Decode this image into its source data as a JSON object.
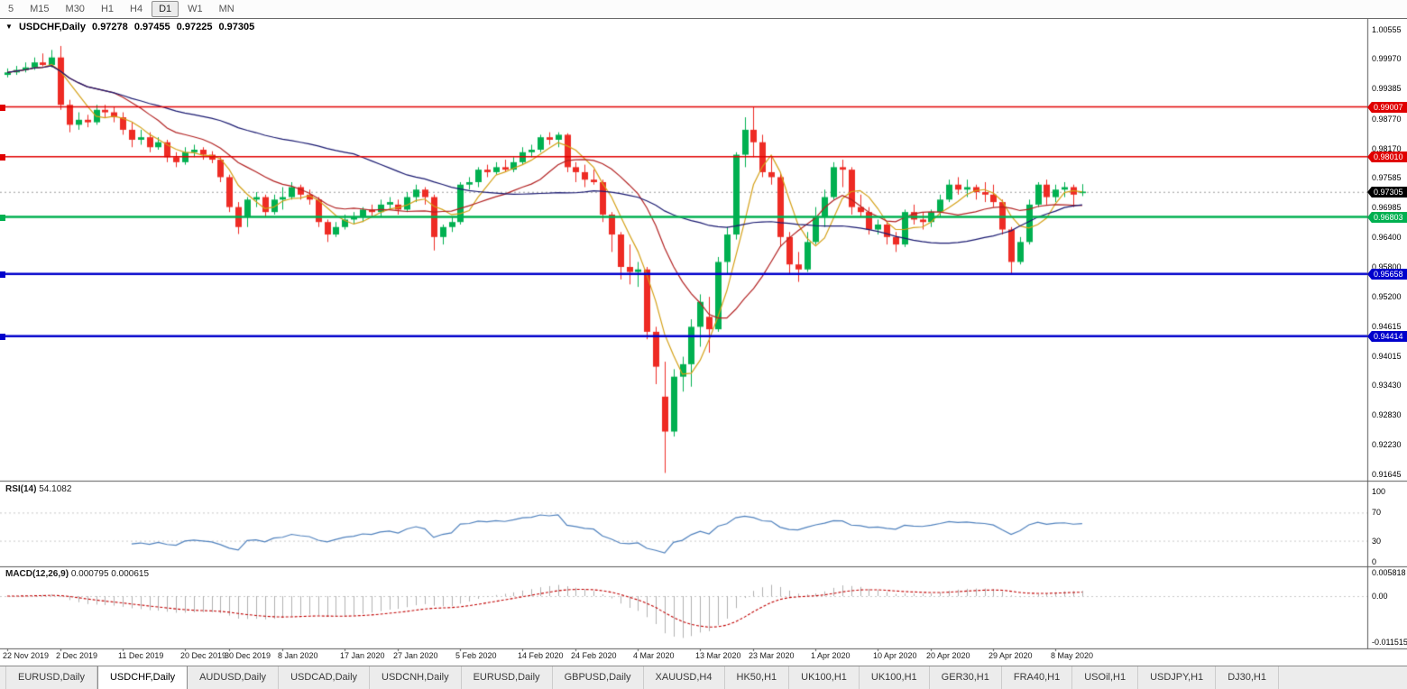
{
  "toolbar": {
    "timeframes": [
      {
        "label": "5",
        "active": false
      },
      {
        "label": "M15",
        "active": false
      },
      {
        "label": "M30",
        "active": false
      },
      {
        "label": "H1",
        "active": false
      },
      {
        "label": "H4",
        "active": false
      },
      {
        "label": "D1",
        "active": true
      },
      {
        "label": "W1",
        "active": false
      },
      {
        "label": "MN",
        "active": false
      }
    ]
  },
  "header": {
    "collapse_icon": "▼",
    "symbol": "USDCHF,Daily",
    "open": "0.97278",
    "high": "0.97455",
    "low": "0.97225",
    "close": "0.97305"
  },
  "chart_data": {
    "type": "candlestick",
    "symbol": "USDCHF",
    "timeframe": "Daily",
    "colors": {
      "up": "#00b050",
      "down": "#ee2b24",
      "wick_up": "#00b050",
      "wick_down": "#ee2b24",
      "ma_fast": "#d4a017",
      "ma_mid": "#b22222",
      "ma_slow": "#191970",
      "level_red": "#e00000",
      "level_green": "#00b050",
      "level_blue": "#0000cc",
      "current": "#000000",
      "rsi_line": "#4f81bd",
      "macd_hist": "#b0b0b0",
      "macd_signal": "#c00000"
    },
    "y_axis": {
      "price_labels": [
        "1.00555",
        "0.99970",
        "0.99385",
        "0.98770",
        "0.98170",
        "0.97585",
        "0.96985",
        "0.96400",
        "0.95800",
        "0.95200",
        "0.94615",
        "0.94015",
        "0.93430",
        "0.92830",
        "0.92230",
        "0.91645"
      ]
    },
    "x_axis": {
      "date_labels": [
        {
          "text": "22 Nov 2019",
          "candle_index": 0
        },
        {
          "text": "2 Dec 2019",
          "candle_index": 6
        },
        {
          "text": "11 Dec 2019",
          "candle_index": 13
        },
        {
          "text": "20 Dec 2019",
          "candle_index": 20
        },
        {
          "text": "30 Dec 2019",
          "candle_index": 25
        },
        {
          "text": "8 Jan 2020",
          "candle_index": 31
        },
        {
          "text": "17 Jan 2020",
          "candle_index": 38
        },
        {
          "text": "27 Jan 2020",
          "candle_index": 44
        },
        {
          "text": "5 Feb 2020",
          "candle_index": 51
        },
        {
          "text": "14 Feb 2020",
          "candle_index": 58
        },
        {
          "text": "24 Feb 2020",
          "candle_index": 64
        },
        {
          "text": "4 Mar 2020",
          "candle_index": 71
        },
        {
          "text": "13 Mar 2020",
          "candle_index": 78
        },
        {
          "text": "23 Mar 2020",
          "candle_index": 84
        },
        {
          "text": "1 Apr 2020",
          "candle_index": 91
        },
        {
          "text": "10 Apr 2020",
          "candle_index": 98
        },
        {
          "text": "20 Apr 2020",
          "candle_index": 104
        },
        {
          "text": "29 Apr 2020",
          "candle_index": 111
        },
        {
          "text": "8 May 2020",
          "candle_index": 118
        }
      ]
    },
    "horizontal_levels": [
      {
        "price": 0.99007,
        "label": "0.99007",
        "color": "#e00000",
        "width": 1.5
      },
      {
        "price": 0.9801,
        "label": "0.98010",
        "color": "#e00000",
        "width": 1.5
      },
      {
        "price": 0.96803,
        "label": "0.96803",
        "color": "#00b050",
        "width": 2.5
      },
      {
        "price": 0.95658,
        "label": "0.95658",
        "color": "#0000cc",
        "width": 2.5
      },
      {
        "price": 0.94414,
        "label": "0.94414",
        "color": "#0000cc",
        "width": 2.5
      }
    ],
    "current_price_line": {
      "price": 0.97305,
      "label": "0.97305",
      "color": "#000000"
    },
    "moving_averages": [
      {
        "period": 5,
        "color": "#d4a017"
      },
      {
        "period": 13,
        "color": "#b22222"
      },
      {
        "period": 40,
        "color": "#191970"
      }
    ],
    "candles": [
      [
        0.9965,
        0.9978,
        0.996,
        0.997
      ],
      [
        0.997,
        0.9983,
        0.9965,
        0.9975
      ],
      [
        0.9975,
        0.999,
        0.997,
        0.998
      ],
      [
        0.998,
        1.0,
        0.9975,
        0.999
      ],
      [
        0.999,
        1.0008,
        0.9982,
        0.9985
      ],
      [
        0.9985,
        1.0015,
        0.998,
        1.0
      ],
      [
        1.0,
        1.0023,
        0.9895,
        0.9905
      ],
      [
        0.9905,
        0.9915,
        0.985,
        0.9865
      ],
      [
        0.9865,
        0.989,
        0.9855,
        0.9875
      ],
      [
        0.9875,
        0.9885,
        0.986,
        0.987
      ],
      [
        0.987,
        0.9905,
        0.9865,
        0.9895
      ],
      [
        0.9895,
        0.9905,
        0.988,
        0.989
      ],
      [
        0.989,
        0.99,
        0.987,
        0.988
      ],
      [
        0.988,
        0.989,
        0.9845,
        0.9855
      ],
      [
        0.9855,
        0.987,
        0.982,
        0.9835
      ],
      [
        0.9835,
        0.9855,
        0.9825,
        0.984
      ],
      [
        0.984,
        0.985,
        0.981,
        0.982
      ],
      [
        0.982,
        0.984,
        0.9815,
        0.983
      ],
      [
        0.983,
        0.9835,
        0.979,
        0.98
      ],
      [
        0.98,
        0.981,
        0.978,
        0.979
      ],
      [
        0.979,
        0.982,
        0.9785,
        0.981
      ],
      [
        0.981,
        0.9825,
        0.98,
        0.9815
      ],
      [
        0.9815,
        0.982,
        0.9795,
        0.9805
      ],
      [
        0.9805,
        0.9812,
        0.9788,
        0.9795
      ],
      [
        0.9795,
        0.98,
        0.975,
        0.976
      ],
      [
        0.976,
        0.9765,
        0.969,
        0.97
      ],
      [
        0.97,
        0.971,
        0.9646,
        0.966
      ],
      [
        0.968,
        0.972,
        0.966,
        0.9715
      ],
      [
        0.9715,
        0.973,
        0.97,
        0.972
      ],
      [
        0.972,
        0.9725,
        0.968,
        0.969
      ],
      [
        0.969,
        0.9725,
        0.9685,
        0.9715
      ],
      [
        0.9715,
        0.974,
        0.9695,
        0.972
      ],
      [
        0.972,
        0.975,
        0.9715,
        0.974
      ],
      [
        0.974,
        0.9745,
        0.9715,
        0.9725
      ],
      [
        0.9725,
        0.9735,
        0.9705,
        0.9715
      ],
      [
        0.9715,
        0.972,
        0.966,
        0.967
      ],
      [
        0.967,
        0.9675,
        0.963,
        0.9645
      ],
      [
        0.9645,
        0.967,
        0.964,
        0.966
      ],
      [
        0.966,
        0.9685,
        0.9655,
        0.9675
      ],
      [
        0.9675,
        0.969,
        0.9665,
        0.968
      ],
      [
        0.968,
        0.97,
        0.967,
        0.9695
      ],
      [
        0.9695,
        0.9705,
        0.968,
        0.969
      ],
      [
        0.969,
        0.9715,
        0.968,
        0.9705
      ],
      [
        0.9705,
        0.972,
        0.9695,
        0.971
      ],
      [
        0.9705,
        0.9715,
        0.9685,
        0.9695
      ],
      [
        0.9695,
        0.973,
        0.969,
        0.972
      ],
      [
        0.972,
        0.9745,
        0.971,
        0.9735
      ],
      [
        0.9735,
        0.974,
        0.9705,
        0.972
      ],
      [
        0.972,
        0.9725,
        0.9613,
        0.964
      ],
      [
        0.964,
        0.9665,
        0.9625,
        0.966
      ],
      [
        0.966,
        0.968,
        0.965,
        0.967
      ],
      [
        0.967,
        0.975,
        0.9665,
        0.9745
      ],
      [
        0.9745,
        0.976,
        0.9735,
        0.975
      ],
      [
        0.975,
        0.978,
        0.974,
        0.9775
      ],
      [
        0.9775,
        0.9785,
        0.976,
        0.977
      ],
      [
        0.977,
        0.979,
        0.9765,
        0.978
      ],
      [
        0.978,
        0.9795,
        0.977,
        0.9775
      ],
      [
        0.9775,
        0.98,
        0.977,
        0.979
      ],
      [
        0.979,
        0.982,
        0.9785,
        0.981
      ],
      [
        0.981,
        0.9825,
        0.98,
        0.9815
      ],
      [
        0.9815,
        0.9845,
        0.981,
        0.984
      ],
      [
        0.984,
        0.985,
        0.9825,
        0.9835
      ],
      [
        0.9835,
        0.985,
        0.982,
        0.9845
      ],
      [
        0.9845,
        0.9848,
        0.977,
        0.978
      ],
      [
        0.978,
        0.979,
        0.975,
        0.977
      ],
      [
        0.977,
        0.9785,
        0.974,
        0.9755
      ],
      [
        0.9755,
        0.9775,
        0.9745,
        0.975
      ],
      [
        0.975,
        0.9755,
        0.967,
        0.9685
      ],
      [
        0.9685,
        0.969,
        0.961,
        0.9645
      ],
      [
        0.9645,
        0.965,
        0.9555,
        0.958
      ],
      [
        0.958,
        0.9625,
        0.9545,
        0.957
      ],
      [
        0.957,
        0.959,
        0.954,
        0.9575
      ],
      [
        0.9575,
        0.958,
        0.9435,
        0.945
      ],
      [
        0.945,
        0.946,
        0.9345,
        0.938
      ],
      [
        0.932,
        0.939,
        0.9167,
        0.925
      ],
      [
        0.925,
        0.9375,
        0.924,
        0.936
      ],
      [
        0.936,
        0.94,
        0.933,
        0.9385
      ],
      [
        0.9385,
        0.9475,
        0.934,
        0.946
      ],
      [
        0.946,
        0.9525,
        0.942,
        0.951
      ],
      [
        0.948,
        0.952,
        0.9408,
        0.9455
      ],
      [
        0.9455,
        0.96,
        0.945,
        0.959
      ],
      [
        0.959,
        0.966,
        0.9565,
        0.9645
      ],
      [
        0.9645,
        0.981,
        0.9635,
        0.9805
      ],
      [
        0.9805,
        0.988,
        0.978,
        0.9855
      ],
      [
        0.9855,
        0.9901,
        0.98,
        0.983
      ],
      [
        0.983,
        0.9845,
        0.976,
        0.977
      ],
      [
        0.977,
        0.98,
        0.9745,
        0.976
      ],
      [
        0.976,
        0.977,
        0.962,
        0.964
      ],
      [
        0.964,
        0.965,
        0.9565,
        0.9585
      ],
      [
        0.9585,
        0.961,
        0.955,
        0.9575
      ],
      [
        0.9575,
        0.965,
        0.957,
        0.963
      ],
      [
        0.963,
        0.97,
        0.9625,
        0.968
      ],
      [
        0.968,
        0.9735,
        0.966,
        0.972
      ],
      [
        0.972,
        0.979,
        0.9715,
        0.978
      ],
      [
        0.978,
        0.9795,
        0.974,
        0.9775
      ],
      [
        0.9775,
        0.978,
        0.9685,
        0.97
      ],
      [
        0.97,
        0.9725,
        0.968,
        0.969
      ],
      [
        0.969,
        0.97,
        0.9645,
        0.9655
      ],
      [
        0.9655,
        0.9675,
        0.9645,
        0.9665
      ],
      [
        0.9665,
        0.967,
        0.9625,
        0.964
      ],
      [
        0.964,
        0.965,
        0.961,
        0.9625
      ],
      [
        0.9625,
        0.9695,
        0.962,
        0.969
      ],
      [
        0.969,
        0.9705,
        0.9665,
        0.9675
      ],
      [
        0.9675,
        0.969,
        0.9655,
        0.967
      ],
      [
        0.967,
        0.9695,
        0.966,
        0.969
      ],
      [
        0.969,
        0.9725,
        0.968,
        0.9715
      ],
      [
        0.9715,
        0.9755,
        0.971,
        0.9745
      ],
      [
        0.9745,
        0.976,
        0.9725,
        0.9735
      ],
      [
        0.9735,
        0.9755,
        0.972,
        0.974
      ],
      [
        0.974,
        0.9745,
        0.9715,
        0.973
      ],
      [
        0.973,
        0.975,
        0.971,
        0.9725
      ],
      [
        0.9725,
        0.9745,
        0.97,
        0.971
      ],
      [
        0.971,
        0.9715,
        0.9645,
        0.9655
      ],
      [
        0.9655,
        0.966,
        0.9565,
        0.959
      ],
      [
        0.959,
        0.964,
        0.9585,
        0.963
      ],
      [
        0.963,
        0.9715,
        0.9625,
        0.9705
      ],
      [
        0.9705,
        0.975,
        0.97,
        0.9745
      ],
      [
        0.9745,
        0.9755,
        0.9705,
        0.972
      ],
      [
        0.972,
        0.9745,
        0.971,
        0.9735
      ],
      [
        0.9735,
        0.975,
        0.972,
        0.974
      ],
      [
        0.974,
        0.9745,
        0.97,
        0.9725
      ],
      [
        0.9728,
        0.9746,
        0.9722,
        0.9731
      ]
    ],
    "indicators": {
      "rsi": {
        "label": "RSI(14)",
        "value": "54.1082",
        "period": 14,
        "axis_labels": [
          {
            "text": "100",
            "value": 100
          },
          {
            "text": "70",
            "value": 70
          },
          {
            "text": "30",
            "value": 30
          },
          {
            "text": "0",
            "value": 0
          }
        ]
      },
      "macd": {
        "label": "MACD(12,26,9)",
        "values": "0.000795 0.000615",
        "fast": 12,
        "slow": 26,
        "signal": 9,
        "axis_labels": [
          {
            "text": "0.005818",
            "value": 0.005818
          },
          {
            "text": "0.00",
            "value": 0
          },
          {
            "text": "-0.011515",
            "value": -0.011515
          }
        ]
      }
    }
  },
  "tabs": [
    {
      "label": "EURUSD,Daily",
      "active": false
    },
    {
      "label": "USDCHF,Daily",
      "active": true
    },
    {
      "label": "AUDUSD,Daily",
      "active": false
    },
    {
      "label": "USDCAD,Daily",
      "active": false
    },
    {
      "label": "USDCNH,Daily",
      "active": false
    },
    {
      "label": "EURUSD,Daily",
      "active": false
    },
    {
      "label": "GBPUSD,Daily",
      "active": false
    },
    {
      "label": "XAUUSD,H4",
      "active": false
    },
    {
      "label": "HK50,H1",
      "active": false
    },
    {
      "label": "UK100,H1",
      "active": false
    },
    {
      "label": "UK100,H1",
      "active": false
    },
    {
      "label": "GER30,H1",
      "active": false
    },
    {
      "label": "FRA40,H1",
      "active": false
    },
    {
      "label": "USOil,H1",
      "active": false
    },
    {
      "label": "USDJPY,H1",
      "active": false
    },
    {
      "label": "DJ30,H1",
      "active": false
    }
  ]
}
